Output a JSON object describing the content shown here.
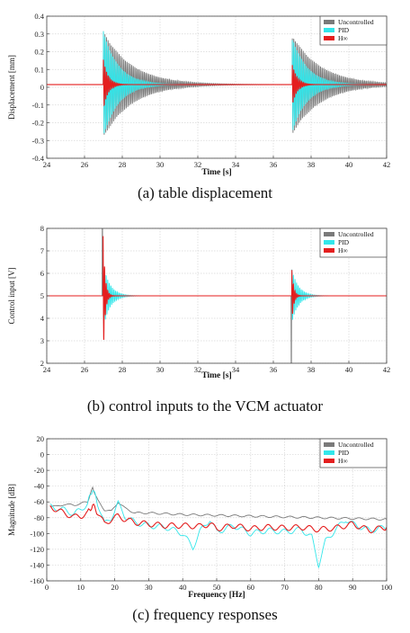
{
  "captions": [
    "(a)  table  displacement",
    "(b)  control  inputs  to  the  VCM  actuator",
    "(c)  frequency  responses"
  ],
  "colors": {
    "Uncontrolled": "#7a7a7a",
    "PID": "#33e6ea",
    "H∞": "#e41e1e"
  },
  "chart_data": [
    {
      "type": "line",
      "title": "",
      "xlabel": "Time  [s]",
      "ylabel": "Displacement [mm]",
      "xlim": [
        24,
        42
      ],
      "ylim": [
        -0.4,
        0.4
      ],
      "xticks": [
        24,
        26,
        28,
        30,
        32,
        34,
        36,
        38,
        40,
        42
      ],
      "yticks": [
        -0.4,
        -0.3,
        -0.2,
        -0.1,
        0,
        0.1,
        0.2,
        0.3,
        0.4
      ],
      "xtick_labels": [
        "24",
        "26",
        "28",
        "30",
        "32",
        "34",
        "36",
        "38",
        "40",
        "42"
      ],
      "ytick_labels": [
        "-0.4",
        "-0.3",
        "-0.2",
        "-0.1",
        "0",
        "0.1",
        "0.2",
        "0.3",
        "0.4"
      ],
      "grid": true,
      "legend": "top-right",
      "baseline": 0.015,
      "series": [
        {
          "name": "Uncontrolled",
          "events": [
            {
              "t0": 27.0,
              "amp": 0.3,
              "tau": 1.5,
              "freq": 12
            },
            {
              "t0": 37.0,
              "amp": 0.28,
              "tau": 1.5,
              "freq": 12
            }
          ]
        },
        {
          "name": "PID",
          "events": [
            {
              "t0": 27.0,
              "amp": 0.3,
              "tau": 0.8,
              "freq": 12
            },
            {
              "t0": 37.0,
              "amp": 0.27,
              "tau": 0.8,
              "freq": 12
            }
          ]
        },
        {
          "name": "H∞",
          "events": [
            {
              "t0": 27.0,
              "amp": 0.14,
              "tau": 0.25,
              "freq": 12
            },
            {
              "t0": 37.0,
              "amp": 0.12,
              "tau": 0.25,
              "freq": 12
            }
          ]
        }
      ]
    },
    {
      "type": "line",
      "title": "",
      "xlabel": "Time  [s]",
      "ylabel": "Control input [V]",
      "xlim": [
        24,
        42
      ],
      "ylim": [
        2,
        8
      ],
      "xticks": [
        24,
        26,
        28,
        30,
        32,
        34,
        36,
        38,
        40,
        42
      ],
      "yticks": [
        2,
        3,
        4,
        5,
        6,
        7,
        8
      ],
      "xtick_labels": [
        "24",
        "26",
        "28",
        "30",
        "32",
        "34",
        "36",
        "38",
        "40",
        "42"
      ],
      "ytick_labels": [
        "2",
        "3",
        "4",
        "5",
        "6",
        "7",
        "8"
      ],
      "grid": true,
      "legend": "top-right",
      "baseline": 5,
      "series": [
        {
          "name": "Uncontrolled",
          "spikes": [
            {
              "t": 26.95,
              "v": 8
            },
            {
              "t": 36.95,
              "v": 2
            }
          ]
        },
        {
          "name": "PID",
          "events": [
            {
              "t0": 26.98,
              "amp": 1.5,
              "tau": 0.35,
              "freq": 12
            },
            {
              "t0": 36.98,
              "amp": 1.2,
              "tau": 0.35,
              "freq": 12
            }
          ]
        },
        {
          "name": "H∞",
          "events": [
            {
              "t0": 26.98,
              "amp": 3,
              "tau": 0.1,
              "freq": 12
            },
            {
              "t0": 36.98,
              "amp": 1.2,
              "tau": 0.1,
              "freq": 12
            }
          ]
        }
      ]
    },
    {
      "type": "line",
      "title": "",
      "xlabel": "Frequency [Hz]",
      "ylabel": "Magnitude [dB]",
      "xlim": [
        0,
        100
      ],
      "ylim": [
        -160,
        20
      ],
      "xticks": [
        0,
        10,
        20,
        30,
        40,
        50,
        60,
        70,
        80,
        90,
        100
      ],
      "yticks": [
        -160,
        -140,
        -120,
        -100,
        -80,
        -60,
        -40,
        -20,
        0,
        20
      ],
      "xtick_labels": [
        "0",
        "10",
        "20",
        "30",
        "40",
        "50",
        "60",
        "70",
        "80",
        "90",
        "100"
      ],
      "ytick_labels": [
        "-160",
        "-140",
        "-120",
        "-100",
        "-80",
        "-60",
        "-40",
        "-20",
        "0",
        "20"
      ],
      "grid": true,
      "legend": "top-right",
      "series": [
        {
          "name": "Uncontrolled",
          "x": [
            1,
            3,
            5,
            8,
            10,
            12,
            13.5,
            15,
            17,
            19,
            21,
            23,
            26,
            30,
            40,
            50,
            60,
            70,
            80,
            90,
            100
          ],
          "y": [
            -65,
            -66,
            -63,
            -64,
            -62,
            -60,
            -42,
            -58,
            -70,
            -72,
            -60,
            -68,
            -74,
            -74,
            -76,
            -77,
            -78,
            -79,
            -80,
            -81,
            -82
          ]
        },
        {
          "name": "PID",
          "x": [
            1,
            3,
            5,
            8,
            10,
            12,
            13.5,
            15,
            17,
            19,
            21,
            23,
            26,
            30,
            35,
            40,
            43,
            45,
            48,
            50,
            55,
            60,
            65,
            70,
            75,
            78,
            80,
            82,
            85,
            88,
            90,
            95,
            100
          ],
          "y": [
            -66,
            -68,
            -70,
            -75,
            -70,
            -62,
            -43,
            -62,
            -88,
            -80,
            -62,
            -78,
            -86,
            -90,
            -92,
            -100,
            -118,
            -98,
            -82,
            -98,
            -90,
            -100,
            -96,
            -98,
            -95,
            -105,
            -140,
            -110,
            -95,
            -82,
            -88,
            -96,
            -92
          ]
        },
        {
          "name": "H∞",
          "x": [
            1,
            3,
            5,
            8,
            10,
            12,
            13.5,
            15,
            17,
            19,
            21,
            23,
            26,
            30,
            35,
            40,
            45,
            48,
            50,
            55,
            60,
            65,
            70,
            75,
            80,
            85,
            90,
            95,
            100
          ],
          "y": [
            -66,
            -70,
            -74,
            -79,
            -78,
            -74,
            -64,
            -74,
            -88,
            -82,
            -78,
            -82,
            -86,
            -88,
            -90,
            -90,
            -91,
            -88,
            -94,
            -90,
            -94,
            -92,
            -93,
            -92,
            -95,
            -93,
            -88,
            -96,
            -92
          ]
        }
      ]
    }
  ]
}
